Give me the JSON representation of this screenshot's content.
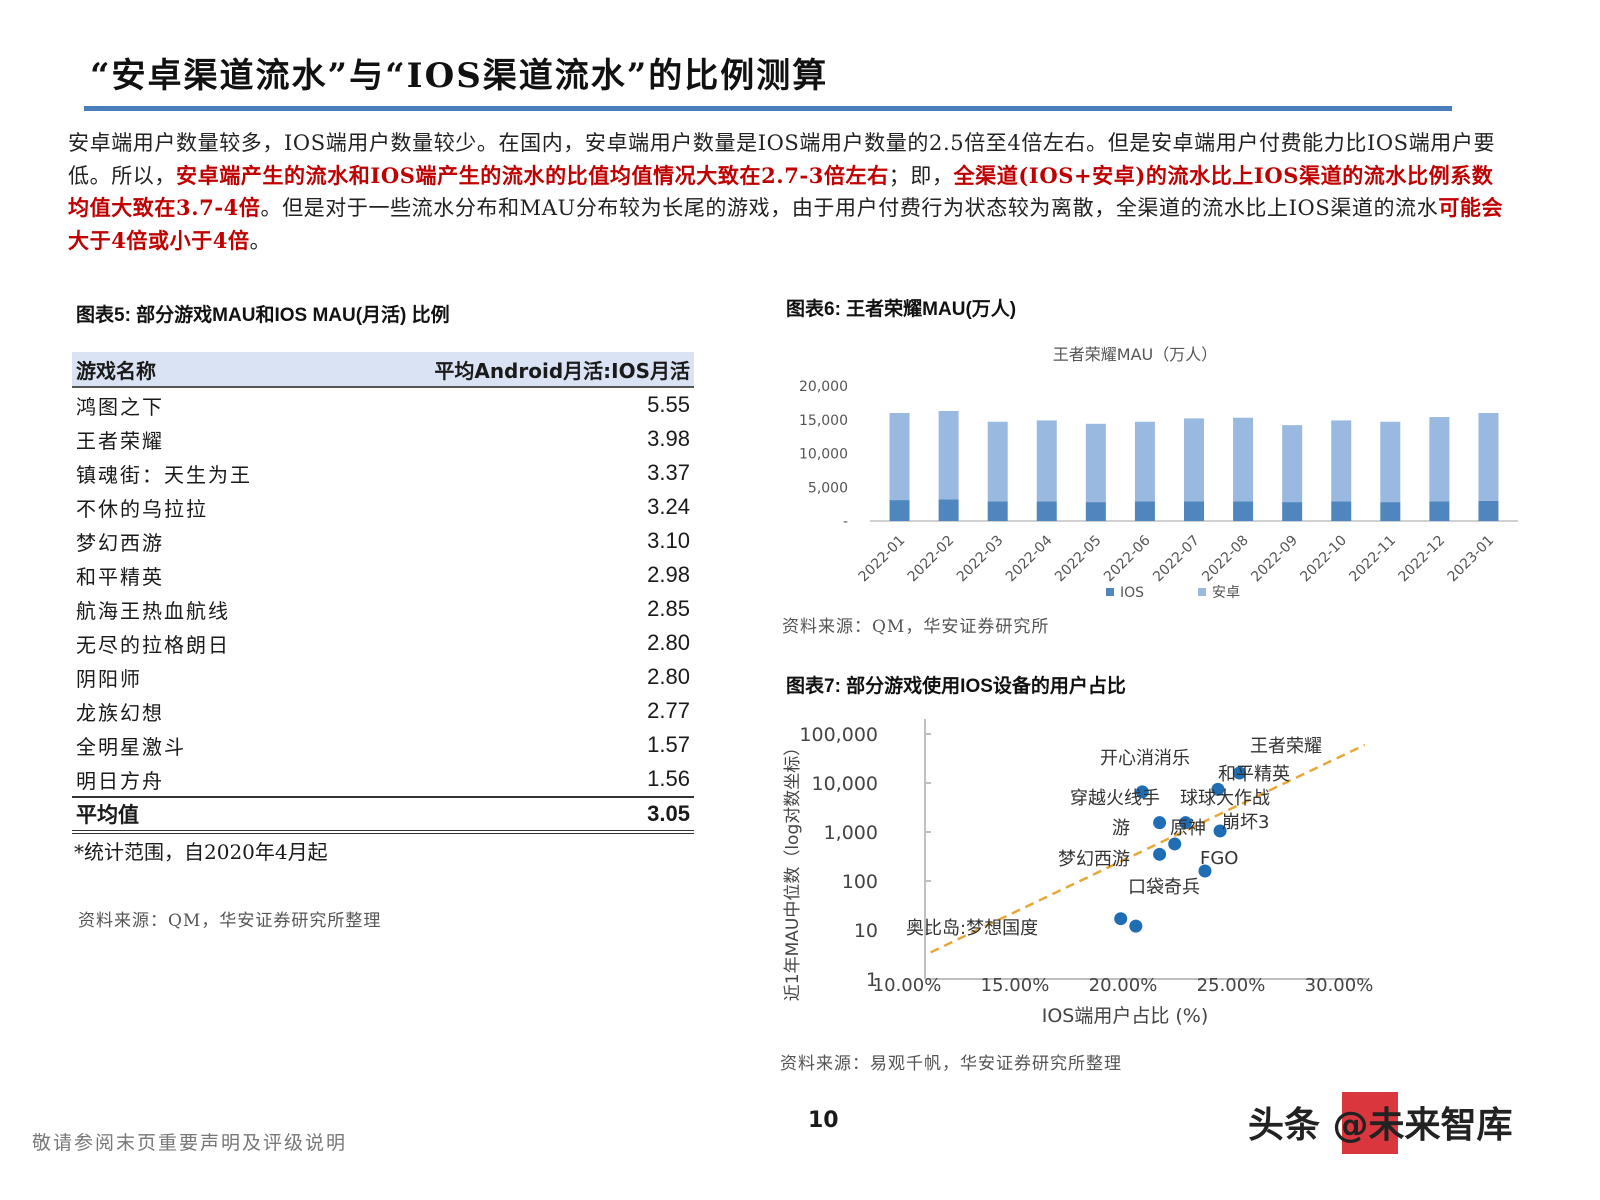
{
  "page": {
    "title": "“安卓渠道流水”与“IOS渠道流水”的比例测算",
    "accent_color": "#4a7ebb",
    "highlight_color": "#c00000",
    "intro": [
      {
        "text": "安卓端用户数量较多，IOS端用户数量较少。在国内，安卓端用户数量是IOS端用户数量的2.5倍至4倍左右。但是安卓端用户付费能力比IOS端用户要低。所以，",
        "hl": false
      },
      {
        "text": "安卓端产生的流水和IOS端产生的流水的比值均值情况大致在2.7-3倍左右",
        "hl": true
      },
      {
        "text": "；即，",
        "hl": false
      },
      {
        "text": "全渠道(IOS+安卓)的流水比上IOS渠道的流水比例系数均值大致在3.7-4倍",
        "hl": true
      },
      {
        "text": "。但是对于一些流水分布和MAU分布较为长尾的游戏，由于用户付费行为状态较为离散，全渠道的流水比上IOS渠道的流水",
        "hl": false
      },
      {
        "text": "可能会大于4倍或小于4倍",
        "hl": true
      },
      {
        "text": "。",
        "hl": false
      }
    ],
    "footer_disclaimer": "敬请参阅末页重要声明及评级说明",
    "page_number": "10",
    "watermark": "头条 @未来智库"
  },
  "fig5": {
    "title": "图表5: 部分游戏MAU和IOS MAU(月活) 比例",
    "col_name": "游戏名称",
    "col_value": "平均Android月活:IOS月活",
    "rows": [
      {
        "name": "鸿图之下",
        "value": "5.55"
      },
      {
        "name": "王者荣耀",
        "value": "3.98"
      },
      {
        "name": "镇魂街：天生为王",
        "value": "3.37"
      },
      {
        "name": "不休的乌拉拉",
        "value": "3.24"
      },
      {
        "name": "梦幻西游",
        "value": "3.10"
      },
      {
        "name": "和平精英",
        "value": "2.98"
      },
      {
        "name": "航海王热血航线",
        "value": "2.85"
      },
      {
        "name": "无尽的拉格朗日",
        "value": "2.80"
      },
      {
        "name": "阴阳师",
        "value": "2.80"
      },
      {
        "name": "龙族幻想",
        "value": "2.77"
      },
      {
        "name": "全明星激斗",
        "value": "1.57"
      },
      {
        "name": "明日方舟",
        "value": "1.56"
      }
    ],
    "avg_label": "平均值",
    "avg_value": "3.05",
    "note": "*统计范围，自2020年4月起",
    "source": "资料来源：QM，华安证券研究所整理"
  },
  "fig6": {
    "title": "图表6: 王者荣耀MAU(万人)",
    "source": "资料来源：QM，华安证券研究所"
  },
  "fig7": {
    "title": "图表7: 部分游戏使用IOS设备的用户占比",
    "source": "资料来源：易观千帆，华安证券研究所整理"
  },
  "chart_data": [
    {
      "type": "bar",
      "stacked": true,
      "title": "王者荣耀MAU（万人）",
      "xlabel": "",
      "ylabel": "",
      "ylim": [
        0,
        20000
      ],
      "yticks": [
        "-",
        "5,000",
        "10,000",
        "15,000",
        "20,000"
      ],
      "categories": [
        "2022-01",
        "2022-02",
        "2022-03",
        "2022-04",
        "2022-05",
        "2022-06",
        "2022-07",
        "2022-08",
        "2022-09",
        "2022-10",
        "2022-11",
        "2022-12",
        "2023-01"
      ],
      "series": [
        {
          "name": "IOS",
          "color": "#4f86bd",
          "values": [
            3100,
            3200,
            2900,
            2900,
            2800,
            2900,
            2900,
            2900,
            2800,
            2900,
            2800,
            2900,
            3000
          ]
        },
        {
          "name": "安卓",
          "color": "#9ab9e0",
          "values": [
            12900,
            13100,
            11800,
            12000,
            11600,
            11800,
            12300,
            12400,
            11400,
            12000,
            11900,
            12500,
            13000
          ]
        }
      ],
      "legend": [
        "IOS",
        "安卓"
      ],
      "legend_position": "bottom",
      "grid": false
    },
    {
      "type": "scatter",
      "title": "",
      "xlabel": "IOS端用户占比 (%)",
      "ylabel": "近1年MAU中位数（log对数坐标）",
      "xlim": [
        10,
        30
      ],
      "ylim": [
        1,
        100000
      ],
      "yscale": "log",
      "xticks": [
        "10.00%",
        "15.00%",
        "20.00%",
        "25.00%",
        "30.00%"
      ],
      "yticks": [
        "1",
        "10",
        "100",
        "1,000",
        "10,000",
        "100,000"
      ],
      "points": [
        {
          "label": "王者荣耀",
          "x": 24.7,
          "y": 16000
        },
        {
          "label": "开心消消乐",
          "x": 20.2,
          "y": 6600
        },
        {
          "label": "和平精英",
          "x": 23.7,
          "y": 7400
        },
        {
          "label": "穿越火线手游",
          "x": 21.0,
          "y": 1550
        },
        {
          "label": "球球大作战",
          "x": 22.2,
          "y": 1550
        },
        {
          "label": "崩坏3",
          "x": 23.8,
          "y": 1050
        },
        {
          "label": "原神",
          "x": 21.7,
          "y": 570
        },
        {
          "label": "梦幻西游",
          "x": 21.0,
          "y": 350
        },
        {
          "label": "FGO",
          "x": 23.1,
          "y": 160
        },
        {
          "label": "口袋奇兵",
          "x": 19.2,
          "y": 17
        },
        {
          "label": "奥比岛:梦想国度",
          "x": 19.9,
          "y": 12
        }
      ],
      "trendline": {
        "style": "dashed",
        "color": "#e8a838",
        "from": [
          10.4,
          3.5
        ],
        "to": [
          30.5,
          60000
        ]
      },
      "point_color": "#1f6db5"
    }
  ]
}
